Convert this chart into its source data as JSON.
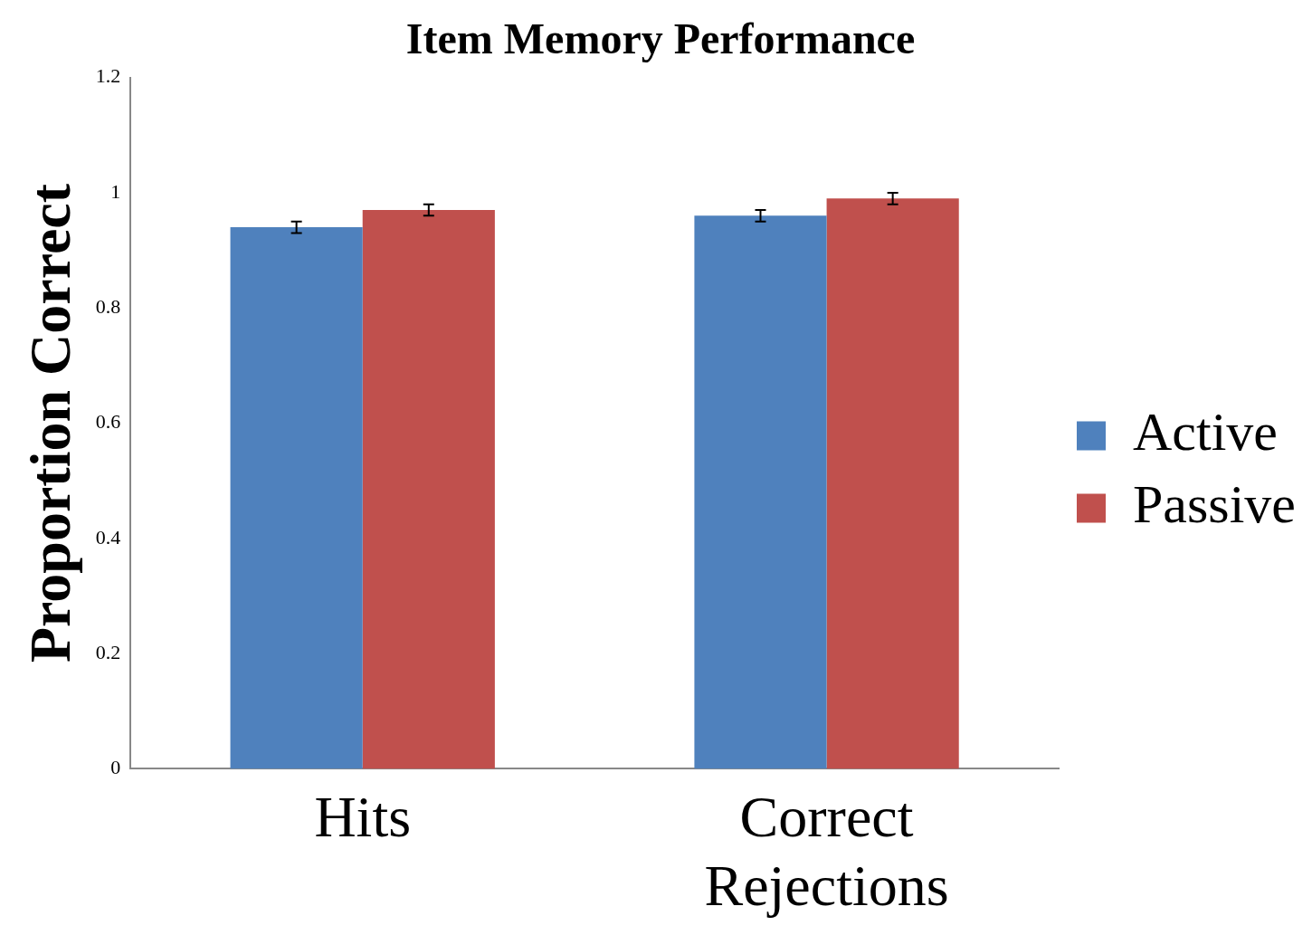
{
  "chart_data": {
    "type": "bar",
    "title": "Item Memory Performance",
    "ylabel": "Proportion Correct",
    "categories": [
      "Hits",
      "Correct Rejections"
    ],
    "series": [
      {
        "name": "Active",
        "color": "#4f81bd",
        "values": [
          0.94,
          0.96
        ],
        "errors": [
          0.01,
          0.01
        ]
      },
      {
        "name": "Passive",
        "color": "#c0504d",
        "values": [
          0.97,
          0.99
        ],
        "errors": [
          0.01,
          0.01
        ]
      }
    ],
    "ylim": [
      0,
      1.2
    ],
    "yticks": [
      0,
      0.2,
      0.4,
      0.6,
      0.8,
      1,
      1.2
    ],
    "grid": false,
    "legend": "right"
  }
}
